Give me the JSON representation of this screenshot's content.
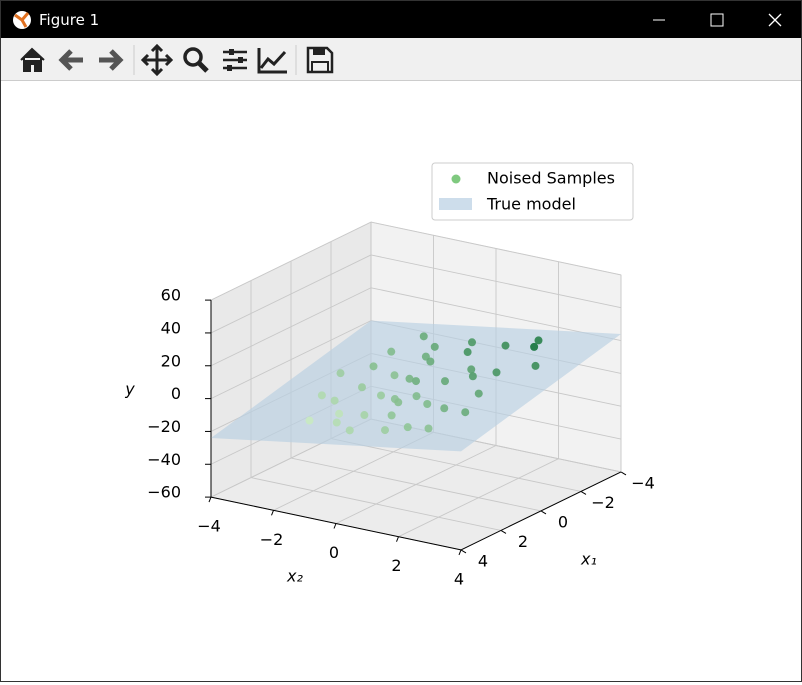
{
  "window": {
    "title": "Figure 1"
  },
  "chart_data": {
    "type": "scatter3d",
    "legend": {
      "position": "upper right"
    },
    "xlabel": "x₁",
    "ylabel": "x₂",
    "zlabel": "y",
    "xlim": [
      -4,
      4
    ],
    "ylim": [
      -4,
      4
    ],
    "zlim": [
      -60,
      60
    ],
    "xticks": [
      {
        "value": -4,
        "label": "−4"
      },
      {
        "value": -2,
        "label": "−2"
      },
      0,
      2,
      4
    ],
    "yticks": [
      {
        "value": -4,
        "label": "−4"
      },
      {
        "value": -2,
        "label": "−2"
      },
      0,
      2,
      4
    ],
    "zticks": [
      {
        "value": -60,
        "label": "−60"
      },
      {
        "value": -40,
        "label": "−40"
      },
      {
        "value": -20,
        "label": "−20"
      },
      0,
      20,
      40,
      60
    ],
    "grid": true,
    "series": [
      {
        "name": "Noised Samples",
        "color": "#7fc97f",
        "cmap": "Greens",
        "x1": [
          -2.5,
          -1.8,
          -1.0,
          -0.5,
          0.0,
          0.5,
          1.0,
          1.5,
          2.0,
          2.5,
          -3.0,
          -2.0,
          -1.5,
          -0.8,
          0.3,
          0.8,
          1.2,
          1.8,
          2.2,
          2.8,
          -2.8,
          -2.2,
          -1.2,
          -0.2,
          0.6,
          1.4,
          2.4,
          -3.2,
          -0.6,
          0.2,
          1.6,
          3.0,
          -1.6,
          -2.6,
          0.9,
          -0.3,
          1.1,
          -1.9,
          2.6,
          -0.9
        ],
        "x2": [
          -1.0,
          0.5,
          -2.0,
          1.5,
          0.0,
          -0.8,
          1.0,
          -1.5,
          0.5,
          2.0,
          2.0,
          2.5,
          -0.5,
          -1.2,
          2.2,
          -2.5,
          0.2,
          -0.5,
          -2.0,
          0.8,
          0.0,
          -2.2,
          1.0,
          0.8,
          0.4,
          1.8,
          -1.0,
          -1.8,
          -2.8,
          -1.6,
          2.6,
          -0.2,
          2.8,
          1.2,
          -0.1,
          -0.4,
          -1.9,
          -0.9,
          1.4,
          2.0
        ],
        "values": [
          5,
          12,
          -2,
          9,
          3,
          -6,
          -1,
          -14,
          -4,
          -3,
          18,
          22,
          4,
          -3,
          6,
          -11,
          -2,
          -9,
          -16,
          -7,
          10,
          -1,
          7,
          5,
          -1,
          2,
          -12,
          4,
          -7,
          -6,
          4,
          -10,
          14,
          14,
          -3,
          1,
          -10,
          3,
          -4,
          11
        ]
      },
      {
        "name": "True model",
        "color": "#b8cfe2",
        "surface_x1": [
          -4,
          4
        ],
        "surface_x2": [
          -4,
          4
        ],
        "surface_y": [
          [
            0,
            24
          ],
          [
            -24,
            0
          ]
        ]
      }
    ]
  }
}
